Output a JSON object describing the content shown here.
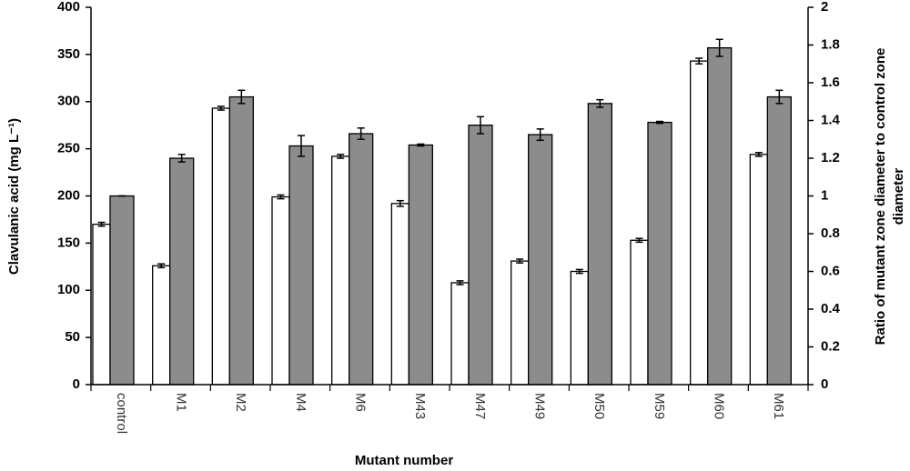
{
  "chart_data": {
    "type": "bar",
    "xlabel": "Mutant number",
    "ylabel": "Clavulanic acid (mg L⁻¹)",
    "y2label": [
      "Ratio of mutant zone diameter to control zone",
      "diameter"
    ],
    "categories": [
      "control",
      "M1",
      "M2",
      "M4",
      "M6",
      "M43",
      "M47",
      "M49",
      "M50",
      "M59",
      "M60",
      "M61"
    ],
    "series": [
      {
        "color": "#ffffff",
        "axis": "y",
        "values": [
          170,
          126,
          293,
          199,
          242,
          192,
          108,
          131,
          120,
          153,
          343,
          244
        ],
        "errors": [
          2,
          2,
          2,
          2,
          2,
          3,
          2,
          2,
          2,
          2,
          3,
          2
        ]
      },
      {
        "color": "#8c8c8c",
        "axis": "y2",
        "values": [
          1.0,
          1.2,
          1.525,
          1.265,
          1.33,
          1.27,
          1.375,
          1.325,
          1.49,
          1.39,
          1.785,
          1.525
        ],
        "errors": [
          0,
          0.02,
          0.035,
          0.055,
          0.03,
          0.005,
          0.045,
          0.03,
          0.02,
          0.005,
          0.045,
          0.035
        ]
      }
    ],
    "ylim": [
      0,
      400
    ],
    "yticks": [
      0,
      50,
      100,
      150,
      200,
      250,
      300,
      350,
      400
    ],
    "y2lim": [
      0,
      2
    ],
    "y2ticks": [
      0,
      0.2,
      0.4,
      0.6,
      0.8,
      1,
      1.2,
      1.4,
      1.6,
      1.8,
      2
    ]
  }
}
